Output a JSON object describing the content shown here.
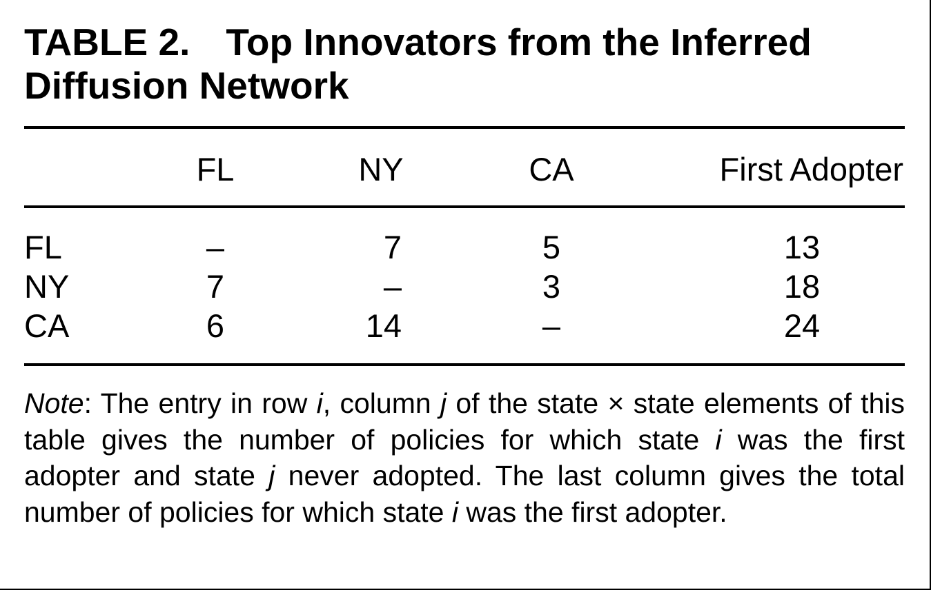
{
  "title": {
    "number": "TABLE 2.",
    "text": "Top Innovators from the Inferred Diffusion Network"
  },
  "columns": {
    "fl": "FL",
    "ny": "NY",
    "ca": "CA",
    "first": "First Adopter"
  },
  "rows": [
    {
      "label": "FL",
      "fl": "–",
      "ny": "7",
      "ca": "5",
      "first": "13"
    },
    {
      "label": "NY",
      "fl": "7",
      "ny": "–",
      "ca": "3",
      "first": "18"
    },
    {
      "label": "CA",
      "fl": "6",
      "ny": "14",
      "ca": "–",
      "first": "24"
    }
  ],
  "note": {
    "lead": "Note",
    "p1": ": The entry in row ",
    "i1": "i",
    "p2": ", column ",
    "j1": "j",
    "p3": " of the state × state elements of this table gives the number of policies for which state ",
    "i2": "i",
    "p4": " was the first adopter and state ",
    "j2": "j",
    "p5": " never adopted. The last column gives the total number of policies for which state ",
    "i3": "i",
    "p6": " was the first adopter."
  }
}
